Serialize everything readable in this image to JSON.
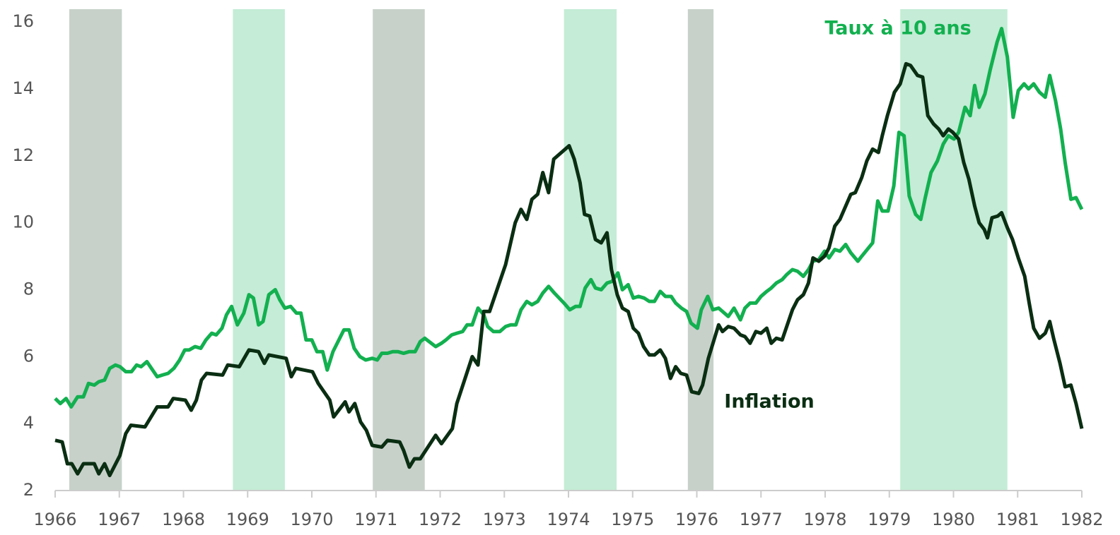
{
  "chart_data": {
    "type": "line",
    "xlim": [
      1966,
      1982
    ],
    "xticks": [
      1966,
      1967,
      1968,
      1969,
      1970,
      1971,
      1972,
      1973,
      1974,
      1975,
      1976,
      1977,
      1978,
      1979,
      1980,
      1981,
      1982
    ],
    "ylim": [
      2,
      16.6
    ],
    "yticks": [
      2,
      4,
      6,
      8,
      10,
      12,
      14,
      16
    ],
    "grid": false,
    "bands": [
      {
        "start": 1966.22,
        "end": 1967.04,
        "color": "#c7d1ca"
      },
      {
        "start": 1968.77,
        "end": 1969.58,
        "color": "#c4ecd6"
      },
      {
        "start": 1970.95,
        "end": 1971.76,
        "color": "#c7d1ca"
      },
      {
        "start": 1973.93,
        "end": 1974.75,
        "color": "#c4ecd6"
      },
      {
        "start": 1975.86,
        "end": 1976.26,
        "color": "#c7d1ca"
      },
      {
        "start": 1979.17,
        "end": 1980.84,
        "color": "#c4ecd6"
      }
    ],
    "series": [
      {
        "name": "Taux à 10 ans",
        "color": "#12b04f",
        "x": [
          1966,
          1966.08,
          1966.17,
          1966.25,
          1966.35,
          1966.44,
          1966.52,
          1966.61,
          1966.68,
          1966.77,
          1966.85,
          1966.94,
          1967.01,
          1967.1,
          1967.19,
          1967.27,
          1967.34,
          1967.43,
          1967.59,
          1967.67,
          1967.76,
          1967.85,
          1967.94,
          1968.02,
          1968.09,
          1968.18,
          1968.27,
          1968.35,
          1968.44,
          1968.51,
          1968.6,
          1968.67,
          1968.75,
          1968.84,
          1968.94,
          1969.02,
          1969.09,
          1969.17,
          1969.24,
          1969.33,
          1969.43,
          1969.5,
          1969.58,
          1969.67,
          1969.76,
          1969.83,
          1969.91,
          1970,
          1970.08,
          1970.17,
          1970.24,
          1970.33,
          1970.5,
          1970.58,
          1970.66,
          1970.75,
          1970.84,
          1970.94,
          1971.02,
          1971.09,
          1971.18,
          1971.26,
          1971.34,
          1971.43,
          1971.52,
          1971.61,
          1971.69,
          1971.76,
          1971.93,
          1972.02,
          1972.09,
          1972.18,
          1972.26,
          1972.35,
          1972.42,
          1972.5,
          1972.59,
          1972.68,
          1972.74,
          1972.83,
          1972.93,
          1973.02,
          1973.1,
          1973.18,
          1973.26,
          1973.35,
          1973.43,
          1973.52,
          1973.6,
          1973.69,
          1973.78,
          1973.93,
          1974.02,
          1974.11,
          1974.18,
          1974.26,
          1974.35,
          1974.42,
          1974.51,
          1974.6,
          1974.68,
          1974.77,
          1974.84,
          1974.93,
          1975.01,
          1975.09,
          1975.18,
          1975.26,
          1975.34,
          1975.43,
          1975.51,
          1975.6,
          1975.67,
          1975.76,
          1975.84,
          1975.91,
          1976.01,
          1976.07,
          1976.17,
          1976.25,
          1976.34,
          1976.4,
          1976.49,
          1976.58,
          1976.68,
          1976.75,
          1976.83,
          1976.92,
          1977,
          1977.09,
          1977.16,
          1977.24,
          1977.33,
          1977.4,
          1977.49,
          1977.57,
          1977.66,
          1977.74,
          1977.81,
          1977.9,
          1977.99,
          1978.06,
          1978.15,
          1978.23,
          1978.32,
          1978.4,
          1978.51,
          1978.57,
          1978.74,
          1978.82,
          1978.89,
          1978.98,
          1979.07,
          1979.15,
          1979.23,
          1979.31,
          1979.41,
          1979.49,
          1979.56,
          1979.65,
          1979.75,
          1979.84,
          1979.92,
          1980.01,
          1980.08,
          1980.18,
          1980.26,
          1980.33,
          1980.4,
          1980.49,
          1980.57,
          1980.68,
          1980.75,
          1980.84,
          1980.93,
          1981.01,
          1981.1,
          1981.17,
          1981.25,
          1981.34,
          1981.43,
          1981.5,
          1981.59,
          1981.67,
          1981.74,
          1981.83,
          1981.91,
          1982
        ],
        "values": [
          4.75,
          4.6,
          4.75,
          4.5,
          4.8,
          4.8,
          5.2,
          5.15,
          5.25,
          5.3,
          5.65,
          5.75,
          5.7,
          5.55,
          5.55,
          5.75,
          5.7,
          5.85,
          5.4,
          5.45,
          5.5,
          5.65,
          5.9,
          6.2,
          6.2,
          6.3,
          6.25,
          6.5,
          6.7,
          6.65,
          6.85,
          7.25,
          7.5,
          6.95,
          7.3,
          7.85,
          7.75,
          6.95,
          7.05,
          7.85,
          8.0,
          7.7,
          7.45,
          7.5,
          7.3,
          7.3,
          6.5,
          6.5,
          6.15,
          6.15,
          5.6,
          6.15,
          6.8,
          6.8,
          6.25,
          6.0,
          5.9,
          5.95,
          5.9,
          6.1,
          6.1,
          6.15,
          6.15,
          6.1,
          6.15,
          6.15,
          6.45,
          6.55,
          6.3,
          6.4,
          6.5,
          6.65,
          6.7,
          6.75,
          6.95,
          6.95,
          7.45,
          7.25,
          6.9,
          6.75,
          6.75,
          6.9,
          6.95,
          6.95,
          7.4,
          7.65,
          7.55,
          7.65,
          7.9,
          8.1,
          7.9,
          7.6,
          7.4,
          7.5,
          7.5,
          8.05,
          8.3,
          8.05,
          8.0,
          8.2,
          8.25,
          8.5,
          8.0,
          8.15,
          7.75,
          7.8,
          7.75,
          7.65,
          7.65,
          7.95,
          7.8,
          7.8,
          7.6,
          7.45,
          7.35,
          7.0,
          6.85,
          7.4,
          7.8,
          7.4,
          7.45,
          7.35,
          7.2,
          7.45,
          7.1,
          7.45,
          7.6,
          7.6,
          7.8,
          7.95,
          8.05,
          8.2,
          8.3,
          8.45,
          8.6,
          8.55,
          8.4,
          8.6,
          8.85,
          8.9,
          9.15,
          8.95,
          9.2,
          9.15,
          9.35,
          9.1,
          8.85,
          9.0,
          9.4,
          10.65,
          10.35,
          10.35,
          11.1,
          12.7,
          12.6,
          10.8,
          10.25,
          10.1,
          10.75,
          11.5,
          11.85,
          12.35,
          12.6,
          12.5,
          12.7,
          13.45,
          13.2,
          14.1,
          13.45,
          13.85,
          14.55,
          15.4,
          15.8,
          14.95,
          13.15,
          13.95,
          14.15,
          14.0,
          14.15,
          13.9,
          13.75,
          14.4,
          13.65,
          12.8,
          11.8,
          10.7,
          10.75,
          10.4
        ]
      },
      {
        "name": "Inflation",
        "color": "#0a2e12",
        "x": [
          1966,
          1966.11,
          1966.19,
          1966.26,
          1966.35,
          1966.44,
          1966.61,
          1966.68,
          1966.77,
          1966.85,
          1967.01,
          1967.1,
          1967.18,
          1967.4,
          1967.59,
          1967.76,
          1967.84,
          1968.03,
          1968.12,
          1968.2,
          1968.28,
          1968.36,
          1968.61,
          1968.69,
          1968.87,
          1969.02,
          1969.17,
          1969.26,
          1969.33,
          1969.6,
          1969.68,
          1969.75,
          1970.01,
          1970.1,
          1970.28,
          1970.34,
          1970.52,
          1970.58,
          1970.67,
          1970.76,
          1970.85,
          1970.94,
          1971.09,
          1971.18,
          1971.37,
          1971.43,
          1971.52,
          1971.6,
          1971.69,
          1971.93,
          1972.02,
          1972.19,
          1972.26,
          1972.5,
          1972.59,
          1972.68,
          1972.77,
          1973.02,
          1973.17,
          1973.26,
          1973.35,
          1973.43,
          1973.52,
          1973.6,
          1973.69,
          1973.77,
          1974.01,
          1974.09,
          1974.18,
          1974.25,
          1974.33,
          1974.42,
          1974.51,
          1974.6,
          1974.67,
          1974.76,
          1974.84,
          1974.93,
          1975.01,
          1975.09,
          1975.17,
          1975.26,
          1975.34,
          1975.43,
          1975.51,
          1975.59,
          1975.67,
          1975.75,
          1975.84,
          1975.92,
          1976.03,
          1976.09,
          1976.18,
          1976.34,
          1976.4,
          1976.49,
          1976.58,
          1976.68,
          1976.75,
          1976.83,
          1976.92,
          1977,
          1977.09,
          1977.16,
          1977.24,
          1977.33,
          1977.49,
          1977.57,
          1977.66,
          1977.74,
          1977.81,
          1977.9,
          1977.99,
          1978.06,
          1978.15,
          1978.23,
          1978.4,
          1978.47,
          1978.57,
          1978.65,
          1978.74,
          1978.83,
          1978.89,
          1978.97,
          1979.08,
          1979.17,
          1979.26,
          1979.33,
          1979.44,
          1979.52,
          1979.6,
          1979.69,
          1979.77,
          1979.84,
          1979.92,
          1979.99,
          1980.08,
          1980.16,
          1980.24,
          1980.33,
          1980.4,
          1980.48,
          1980.53,
          1980.6,
          1980.69,
          1980.75,
          1980.84,
          1980.92,
          1981.01,
          1981.11,
          1981.18,
          1981.25,
          1981.34,
          1981.43,
          1981.5,
          1981.56,
          1981.66,
          1981.74,
          1981.83,
          1981.91,
          1982
        ],
        "values": [
          3.5,
          3.45,
          2.8,
          2.8,
          2.5,
          2.8,
          2.8,
          2.5,
          2.8,
          2.45,
          3.05,
          3.7,
          3.95,
          3.9,
          4.5,
          4.5,
          4.75,
          4.7,
          4.4,
          4.7,
          5.3,
          5.5,
          5.45,
          5.75,
          5.7,
          6.2,
          6.15,
          5.8,
          6.05,
          5.95,
          5.4,
          5.65,
          5.55,
          5.2,
          4.7,
          4.2,
          4.65,
          4.35,
          4.6,
          4.05,
          3.8,
          3.35,
          3.3,
          3.5,
          3.45,
          3.2,
          2.7,
          2.95,
          2.95,
          3.65,
          3.4,
          3.85,
          4.6,
          6.0,
          5.75,
          7.35,
          7.35,
          8.75,
          10.0,
          10.4,
          10.1,
          10.7,
          10.85,
          11.5,
          10.9,
          11.9,
          12.3,
          11.9,
          11.2,
          10.25,
          10.2,
          9.5,
          9.4,
          9.7,
          8.6,
          7.85,
          7.45,
          7.35,
          6.85,
          6.7,
          6.3,
          6.05,
          6.05,
          6.2,
          5.95,
          5.35,
          5.7,
          5.5,
          5.45,
          4.95,
          4.9,
          5.15,
          5.95,
          6.95,
          6.75,
          6.9,
          6.85,
          6.65,
          6.6,
          6.4,
          6.75,
          6.7,
          6.85,
          6.4,
          6.55,
          6.5,
          7.4,
          7.7,
          7.85,
          8.2,
          8.95,
          8.85,
          9.0,
          9.25,
          9.9,
          10.1,
          10.85,
          10.9,
          11.35,
          11.85,
          12.2,
          12.1,
          12.6,
          13.2,
          13.9,
          14.15,
          14.75,
          14.7,
          14.4,
          14.35,
          13.2,
          12.95,
          12.8,
          12.6,
          12.8,
          12.7,
          12.5,
          11.8,
          11.3,
          10.5,
          10.0,
          9.8,
          9.55,
          10.15,
          10.2,
          10.3,
          9.85,
          9.5,
          8.95,
          8.4,
          7.6,
          6.85,
          6.55,
          6.7,
          7.05,
          6.55,
          5.8,
          5.1,
          5.15,
          4.6,
          3.85
        ]
      }
    ]
  }
}
